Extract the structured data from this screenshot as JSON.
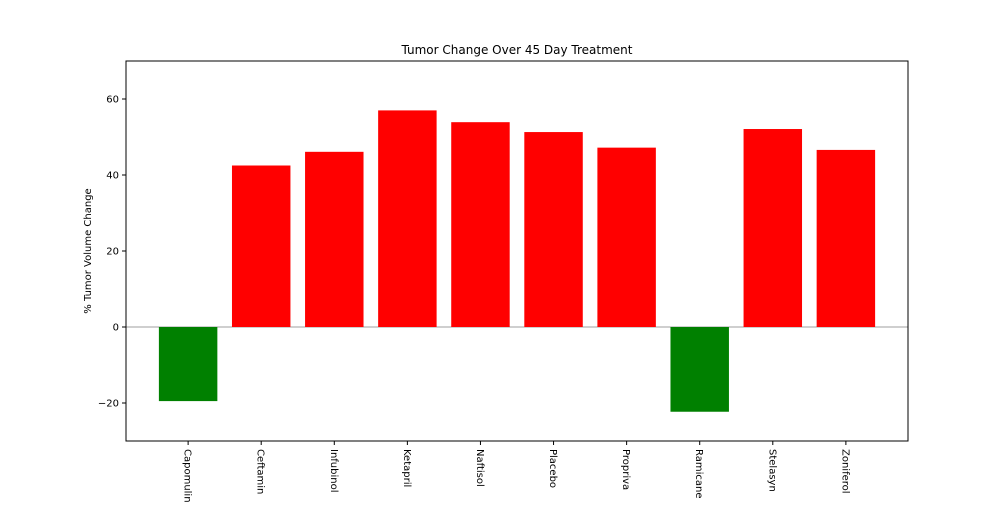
{
  "chart_data": {
    "type": "bar",
    "title": "Tumor Change Over 45 Day Treatment",
    "xlabel": "",
    "ylabel": "% Tumor Volume Change",
    "categories": [
      "Capomulin",
      "Ceftamin",
      "Infubinol",
      "Ketapril",
      "Naftisol",
      "Placebo",
      "Propriva",
      "Ramicane",
      "Stelasyn",
      "Zoniferol"
    ],
    "values": [
      -19.5,
      42.5,
      46.1,
      57.0,
      53.9,
      51.3,
      47.2,
      -22.3,
      52.1,
      46.6
    ],
    "ylim": [
      -30,
      70
    ],
    "yticks": [
      -20,
      0,
      20,
      40,
      60
    ],
    "ytick_labels": [
      "−20",
      "0",
      "20",
      "40",
      "60"
    ],
    "grid": false,
    "zero_line": true,
    "colors": {
      "positive": "#ff0000",
      "negative": "#008000",
      "zero_line": "#bfbfbf",
      "axis": "#000000"
    }
  }
}
